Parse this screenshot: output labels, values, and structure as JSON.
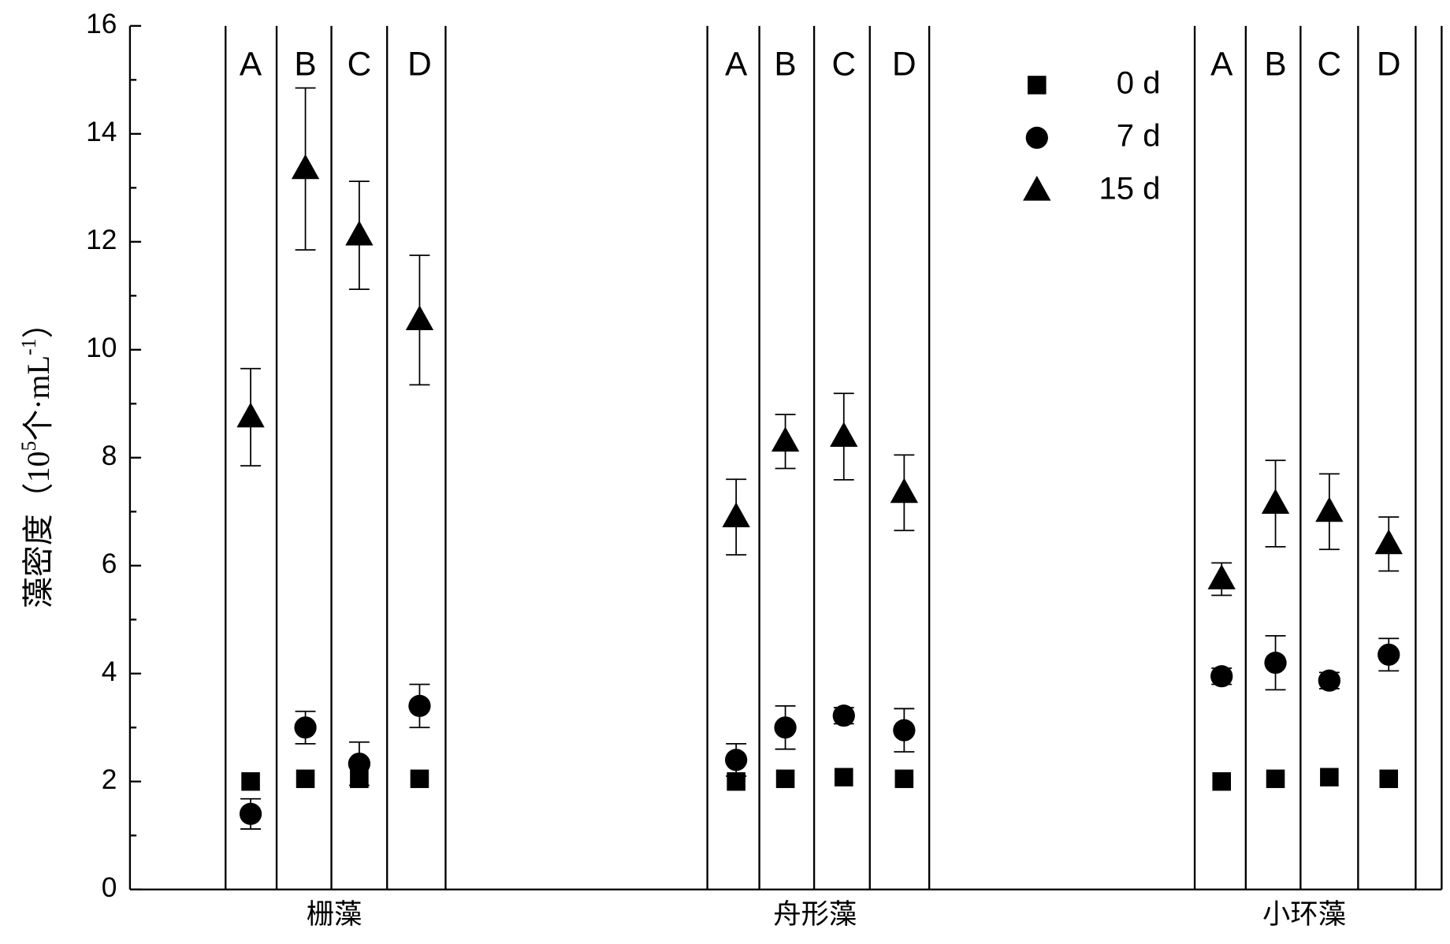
{
  "chart_data": {
    "type": "scatter",
    "ylabel": [
      "藻密度（10",
      "5",
      "个·mL",
      "-1",
      "）"
    ],
    "groups": [
      "栅藻",
      "舟形藻",
      "小环藻"
    ],
    "subgroups": [
      "A",
      "B",
      "C",
      "D"
    ],
    "ylim": [
      0,
      16
    ],
    "yticks": [
      0,
      2,
      4,
      6,
      8,
      10,
      12,
      14,
      16
    ],
    "yminor": [
      1,
      3,
      5,
      7,
      9,
      11,
      13,
      15
    ],
    "series": [
      {
        "name": "0 d",
        "marker": "square",
        "color": "#000000",
        "values": [
          2.0,
          2.05,
          2.05,
          2.05,
          2.0,
          2.05,
          2.08,
          2.05,
          2.0,
          2.05,
          2.08,
          2.05
        ],
        "errors": [
          0,
          0,
          0,
          0,
          0,
          0,
          0,
          0,
          0,
          0,
          0,
          0
        ]
      },
      {
        "name": "7 d",
        "marker": "circle",
        "color": "#000000",
        "values": [
          1.4,
          3.0,
          2.33,
          3.4,
          2.4,
          3.0,
          3.22,
          2.95,
          3.95,
          4.2,
          3.87,
          4.35
        ],
        "errors": [
          0.28,
          0.3,
          0.4,
          0.4,
          0.3,
          0.4,
          0.15,
          0.4,
          0.15,
          0.5,
          0.15,
          0.3
        ]
      },
      {
        "name": "15 d",
        "marker": "triangle",
        "color": "#000000",
        "values": [
          8.75,
          13.35,
          12.12,
          10.55,
          6.9,
          8.3,
          8.39,
          7.35,
          5.75,
          7.15,
          7.0,
          6.4
        ],
        "errors": [
          0.9,
          1.5,
          1.0,
          1.2,
          0.7,
          0.5,
          0.8,
          0.7,
          0.3,
          0.8,
          0.7,
          0.5
        ]
      }
    ]
  }
}
